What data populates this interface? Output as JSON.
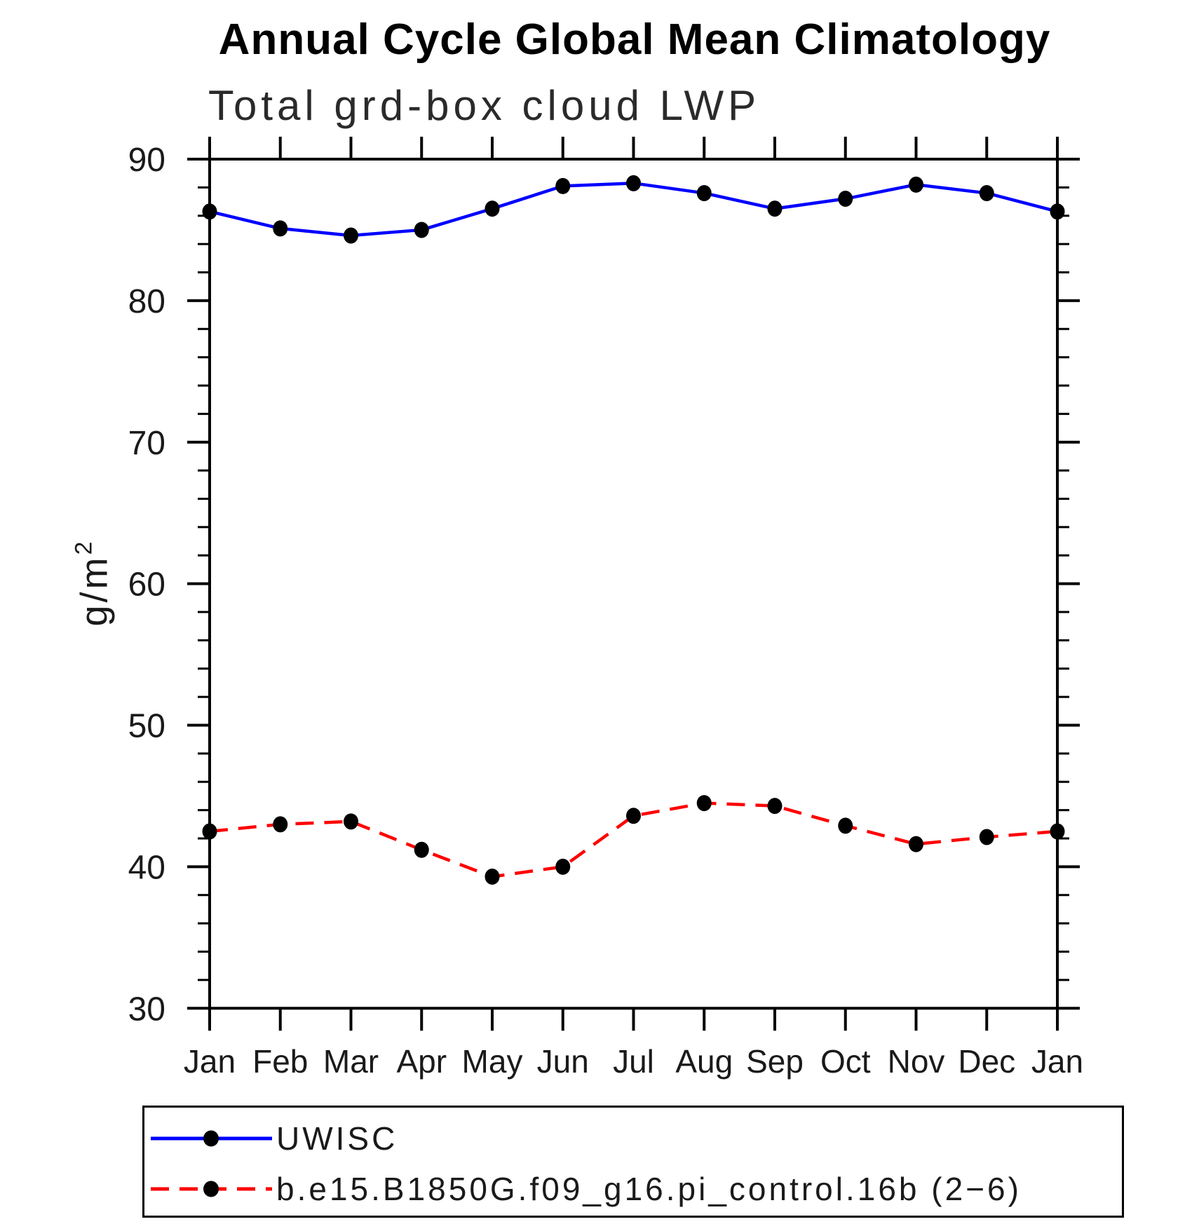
{
  "page": {
    "title": "Annual Cycle Global Mean Climatology",
    "subtitle": "Total grd-box cloud LWP"
  },
  "y_axis": {
    "unit_base": "g/m",
    "unit_exponent": "2"
  },
  "chart_data": {
    "type": "line",
    "title": "Annual Cycle Global Mean Climatology",
    "subtitle": "Total grd-box cloud LWP",
    "ylabel": "g/m^2",
    "xlabel": "",
    "categories": [
      "Jan",
      "Feb",
      "Mar",
      "Apr",
      "May",
      "Jun",
      "Jul",
      "Aug",
      "Sep",
      "Oct",
      "Nov",
      "Dec",
      "Jan"
    ],
    "ylim": [
      30,
      90
    ],
    "yticks": [
      90,
      80,
      70,
      60,
      50,
      40,
      30
    ],
    "minor_ytick_step": 2,
    "grid": false,
    "legend_position": "bottom",
    "axis_color": "#000000",
    "series": [
      {
        "name": "UWISC",
        "line_style": "solid",
        "color": "#0000ff",
        "marker": "filled-circle",
        "marker_color": "#000000",
        "values": [
          86.3,
          85.1,
          84.6,
          85.0,
          86.5,
          88.1,
          88.3,
          87.6,
          86.5,
          87.2,
          88.2,
          87.6,
          86.3
        ]
      },
      {
        "name": "b.e15.B1850G.f09_g16.pi_control.16b (2−6)",
        "line_style": "dashed",
        "color": "#ff0000",
        "marker": "filled-circle",
        "marker_color": "#000000",
        "values": [
          42.5,
          43.0,
          43.2,
          41.2,
          39.3,
          40.0,
          43.6,
          44.5,
          44.3,
          42.9,
          41.6,
          42.1,
          42.5
        ]
      }
    ]
  }
}
